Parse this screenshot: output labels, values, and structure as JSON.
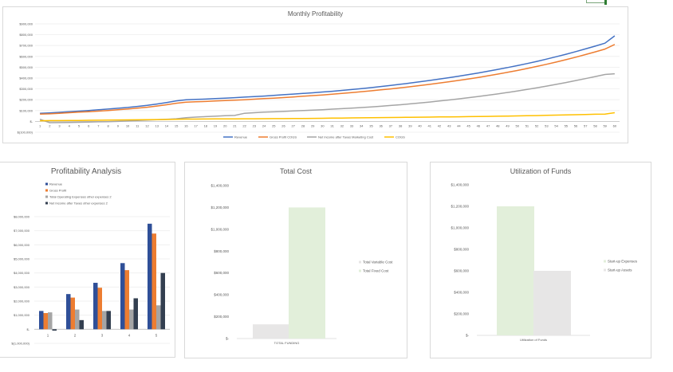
{
  "colors": {
    "revenue": "#4472c4",
    "gross": "#ed7d31",
    "net": "#a5a5a5",
    "cogs": "#ffc000",
    "pa_revenue": "#2f4f98",
    "pa_opex": "#a5a5a5",
    "pa_net": "#333f50",
    "variable_cost": "#e7e6e6",
    "fixed_cost": "#e2efda",
    "grid": "#eeeeee"
  },
  "chart_data": [
    {
      "type": "line",
      "title": "Monthly Profitability",
      "x": [
        1,
        2,
        3,
        4,
        5,
        6,
        7,
        8,
        9,
        10,
        11,
        12,
        13,
        14,
        15,
        16,
        17,
        18,
        19,
        20,
        21,
        22,
        23,
        24,
        25,
        26,
        27,
        28,
        29,
        30,
        31,
        32,
        33,
        34,
        35,
        36,
        37,
        38,
        39,
        40,
        41,
        42,
        43,
        44,
        45,
        46,
        47,
        48,
        49,
        50,
        51,
        52,
        53,
        54,
        55,
        56,
        57,
        58,
        59,
        60
      ],
      "ylim": [
        -100000,
        900000
      ],
      "ytick_labels": [
        "$(100,000)",
        "$-",
        "$100,000",
        "$200,000",
        "$300,000",
        "$400,000",
        "$500,000",
        "$600,000",
        "$700,000",
        "$800,000",
        "$900,000"
      ],
      "legend_position": "bottom",
      "series": [
        {
          "name": "Revenue",
          "values": [
            75000,
            79000,
            84000,
            89000,
            95000,
            101000,
            107000,
            114000,
            121000,
            129000,
            138000,
            148000,
            160000,
            174000,
            190000,
            200000,
            203000,
            206000,
            210000,
            214000,
            219000,
            224000,
            229000,
            234000,
            240000,
            246000,
            252000,
            258000,
            264000,
            271000,
            278000,
            286000,
            294000,
            303000,
            312000,
            322000,
            332000,
            343000,
            354000,
            366000,
            378000,
            391000,
            404000,
            418000,
            432000,
            447000,
            463000,
            480000,
            497000,
            515000,
            534000,
            554000,
            575000,
            597000,
            620000,
            644000,
            669000,
            695000,
            722000,
            790000
          ]
        },
        {
          "name": "Gross Profit COGS",
          "values": [
            67000,
            70000,
            75000,
            80000,
            85000,
            90000,
            95000,
            101000,
            107000,
            114000,
            122000,
            131000,
            142000,
            154000,
            168000,
            178000,
            181000,
            184000,
            188000,
            192000,
            196000,
            200000,
            205000,
            210000,
            215000,
            220000,
            226000,
            232000,
            238000,
            244000,
            251000,
            258000,
            266000,
            274000,
            282000,
            291000,
            300000,
            310000,
            320000,
            331000,
            342000,
            354000,
            366000,
            379000,
            392000,
            406000,
            421000,
            437000,
            453000,
            470000,
            488000,
            507000,
            527000,
            548000,
            570000,
            593000,
            617000,
            642000,
            668000,
            710000
          ]
        },
        {
          "name": "Net Income after Taxes Marketing Cost",
          "values": [
            20000,
            -12000,
            -11000,
            -10000,
            -8000,
            -6000,
            -4000,
            -2000,
            0,
            4000,
            8000,
            12000,
            16000,
            20000,
            24000,
            34000,
            40000,
            44000,
            48000,
            52000,
            55000,
            75000,
            80000,
            85000,
            88000,
            92000,
            96000,
            100000,
            104000,
            108000,
            113000,
            118000,
            123000,
            128000,
            134000,
            140000,
            147000,
            154000,
            162000,
            170000,
            179000,
            188000,
            198000,
            208000,
            219000,
            230000,
            242000,
            254000,
            267000,
            281000,
            295000,
            310000,
            326000,
            342000,
            359000,
            377000,
            395000,
            414000,
            433000,
            440000
          ]
        },
        {
          "name": "COGS",
          "values": [
            6000,
            7000,
            7500,
            8000,
            9000,
            10000,
            11000,
            12000,
            13000,
            14000,
            15000,
            16000,
            17000,
            18000,
            20000,
            21000,
            21500,
            22000,
            22500,
            23000,
            23500,
            24000,
            24500,
            25000,
            25500,
            26000,
            26500,
            27000,
            28000,
            29000,
            30000,
            31000,
            32000,
            33000,
            34000,
            35000,
            36000,
            37000,
            38000,
            39000,
            40000,
            41000,
            42000,
            43000,
            44000,
            45000,
            46500,
            48000,
            49500,
            51000,
            52500,
            54000,
            56000,
            58000,
            60000,
            62000,
            64000,
            66000,
            68000,
            80000
          ]
        }
      ]
    },
    {
      "type": "bar",
      "title": "Profitability Analysis",
      "categories": [
        "1",
        "2",
        "3",
        "4",
        "5"
      ],
      "ylim": [
        -1000000,
        8000000
      ],
      "ytick_labels": [
        "$(1,000,000)",
        "$-",
        "$1,000,000",
        "$2,000,000",
        "$3,000,000",
        "$4,000,000",
        "$5,000,000",
        "$6,000,000",
        "$7,000,000",
        "$8,000,000"
      ],
      "legend_position": "top-left",
      "series": [
        {
          "name": "Revenue",
          "values": [
            1300000,
            2500000,
            3300000,
            4700000,
            7500000
          ]
        },
        {
          "name": "Gross Profit",
          "values": [
            1150000,
            2250000,
            2950000,
            4200000,
            6800000
          ]
        },
        {
          "name": "Total Operating Expenses other expenses 2",
          "values": [
            1200000,
            1400000,
            1300000,
            1400000,
            1700000
          ]
        },
        {
          "name": "Net Income after Taxes other expenses 2",
          "values": [
            -100000,
            650000,
            1300000,
            2200000,
            4000000
          ]
        }
      ]
    },
    {
      "type": "bar",
      "title": "Total Cost",
      "categories": [
        "TOTAL FUNDING"
      ],
      "ylim": [
        0,
        1400000
      ],
      "ytick_labels": [
        "$-",
        "$200,000",
        "$400,000",
        "$600,000",
        "$800,000",
        "$1,000,000",
        "$1,200,000",
        "$1,400,000"
      ],
      "legend_position": "right",
      "series": [
        {
          "name": "Total Variable Cost",
          "values": [
            130000
          ]
        },
        {
          "name": "Total Fixed Cost",
          "values": [
            1200000
          ]
        }
      ]
    },
    {
      "type": "bar",
      "title": "Utilization of Funds",
      "categories": [
        "Utilization of Funds"
      ],
      "ylim": [
        0,
        1400000
      ],
      "ytick_labels": [
        "$-",
        "$200,000",
        "$400,000",
        "$600,000",
        "$800,000",
        "$1,000,000",
        "$1,200,000",
        "$1,400,000"
      ],
      "legend_position": "right",
      "series": [
        {
          "name": "Start-up Expenses",
          "values": [
            1200000
          ]
        },
        {
          "name": "Start-up Assets",
          "values": [
            600000
          ]
        }
      ]
    }
  ]
}
